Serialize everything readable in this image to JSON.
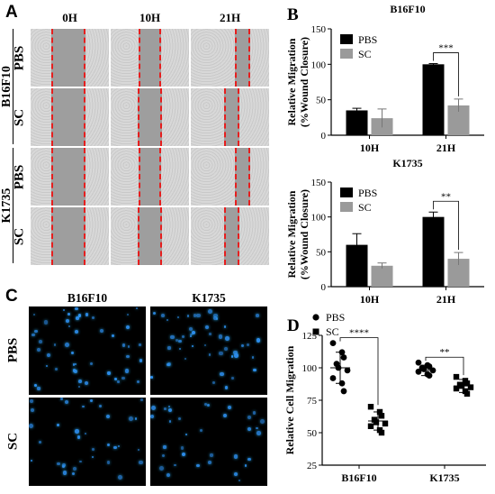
{
  "panel_a": {
    "letter": "A",
    "col_headers": [
      "0H",
      "10H",
      "21H"
    ],
    "groups": [
      "B16F10",
      "K1735"
    ],
    "treatments": [
      "PBS",
      "SC"
    ]
  },
  "panel_c": {
    "letter": "C",
    "col_headers": [
      "B16F10",
      "K1735"
    ],
    "row_labels": [
      "PBS",
      "SC"
    ]
  },
  "colors": {
    "pbs": "#000000",
    "sc": "#9a9a9a",
    "scratch_line": "#e61e1e",
    "fluor": "#2e8ff0"
  },
  "chart_data": [
    {
      "panel": "B",
      "type": "bar",
      "title": "B16F10",
      "ylabel": "Relative Migration\n(%Wound Closure)",
      "ylabel_lines": [
        "Relative Migration",
        "(%Wound Closure)"
      ],
      "categories": [
        "10H",
        "21H"
      ],
      "ylim": [
        0,
        150
      ],
      "yticks": [
        0,
        50,
        100,
        150
      ],
      "legend": "top-left",
      "series": [
        {
          "name": "PBS",
          "color": "#000000",
          "values": [
            35,
            100
          ],
          "err": [
            3,
            1
          ]
        },
        {
          "name": "SC",
          "color": "#9a9a9a",
          "values": [
            24,
            42
          ],
          "err": [
            13,
            9
          ]
        }
      ],
      "significance": {
        "category": "21H",
        "label": "***"
      }
    },
    {
      "panel": "K1735-bars",
      "type": "bar",
      "title": "K1735",
      "ylabel": "Relative Migration\n(%Wound Closure)",
      "ylabel_lines": [
        "Relative Migration",
        "(%Wound Closure)"
      ],
      "categories": [
        "10H",
        "21H"
      ],
      "ylim": [
        0,
        150
      ],
      "yticks": [
        0,
        50,
        100,
        150
      ],
      "legend": "top-left",
      "series": [
        {
          "name": "PBS",
          "color": "#000000",
          "values": [
            60,
            100
          ],
          "err": [
            16,
            7
          ]
        },
        {
          "name": "SC",
          "color": "#9a9a9a",
          "values": [
            30,
            40
          ],
          "err": [
            4,
            9
          ]
        }
      ],
      "significance": {
        "category": "21H",
        "label": "**"
      }
    },
    {
      "panel": "D",
      "type": "scatter",
      "ylabel": "Relative Cell Migration",
      "categories": [
        "B16F10",
        "K1735"
      ],
      "ylim": [
        25,
        125
      ],
      "yticks": [
        25,
        50,
        75,
        100,
        125
      ],
      "legend": "top-left",
      "series": [
        {
          "name": "PBS",
          "marker": "circle",
          "mean": [
            100,
            98
          ],
          "sd": [
            12,
            4
          ],
          "points": [
            [
              119,
              112,
              108,
              103,
              100,
              98,
              92,
              88,
              82
            ],
            [
              104,
              102,
              101,
              100,
              99,
              98,
              97,
              95,
              94
            ]
          ]
        },
        {
          "name": "SC",
          "marker": "square",
          "mean": [
            59,
            86
          ],
          "sd": [
            7,
            5
          ],
          "points": [
            [
              70,
              66,
              63,
              60,
              58,
              57,
              55,
              52,
              50
            ],
            [
              93,
              90,
              88,
              87,
              86,
              85,
              84,
              82,
              80
            ]
          ]
        }
      ],
      "significance": [
        {
          "category": "B16F10",
          "label": "****"
        },
        {
          "category": "K1735",
          "label": "**"
        }
      ]
    }
  ]
}
